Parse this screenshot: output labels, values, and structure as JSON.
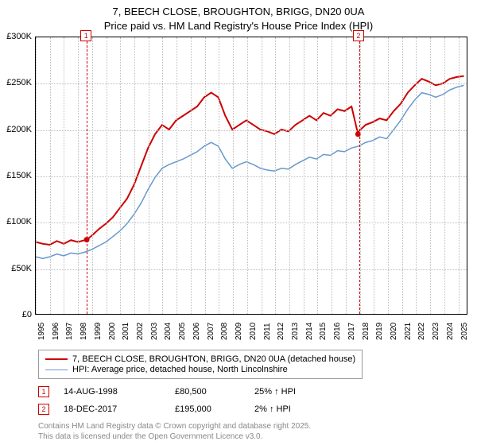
{
  "title_line1": "7, BEECH CLOSE, BROUGHTON, BRIGG, DN20 0UA",
  "title_line2": "Price paid vs. HM Land Registry's House Price Index (HPI)",
  "chart": {
    "type": "line",
    "x_years": [
      1995,
      1996,
      1997,
      1998,
      1999,
      2000,
      2001,
      2002,
      2003,
      2004,
      2005,
      2006,
      2007,
      2008,
      2009,
      2010,
      2011,
      2012,
      2013,
      2014,
      2015,
      2016,
      2017,
      2018,
      2019,
      2020,
      2021,
      2022,
      2023,
      2024,
      2025
    ],
    "xlim": [
      1995,
      2025.7
    ],
    "ylim": [
      0,
      300000
    ],
    "ytick_step": 50000,
    "y_tick_labels": [
      "£0",
      "£50K",
      "£100K",
      "£150K",
      "£200K",
      "£250K",
      "£300K"
    ],
    "grid_color": "#bdbdbd",
    "background_color": "#ffffff",
    "axis_color": "#000000",
    "series": [
      {
        "name": "7, BEECH CLOSE, BROUGHTON, BRIGG, DN20 0UA (detached house)",
        "color": "#cc0000",
        "line_width": 2,
        "data": [
          [
            1995,
            78000
          ],
          [
            1995.5,
            76000
          ],
          [
            1996,
            75000
          ],
          [
            1996.5,
            79000
          ],
          [
            1997,
            76000
          ],
          [
            1997.5,
            80000
          ],
          [
            1998,
            78000
          ],
          [
            1998.63,
            80500
          ],
          [
            1999,
            85000
          ],
          [
            1999.5,
            92000
          ],
          [
            2000,
            98000
          ],
          [
            2000.5,
            105000
          ],
          [
            2001,
            115000
          ],
          [
            2001.5,
            125000
          ],
          [
            2002,
            140000
          ],
          [
            2002.5,
            160000
          ],
          [
            2003,
            180000
          ],
          [
            2003.5,
            195000
          ],
          [
            2004,
            205000
          ],
          [
            2004.5,
            200000
          ],
          [
            2005,
            210000
          ],
          [
            2005.5,
            215000
          ],
          [
            2006,
            220000
          ],
          [
            2006.5,
            225000
          ],
          [
            2007,
            235000
          ],
          [
            2007.5,
            240000
          ],
          [
            2008,
            235000
          ],
          [
            2008.5,
            215000
          ],
          [
            2009,
            200000
          ],
          [
            2009.5,
            205000
          ],
          [
            2010,
            210000
          ],
          [
            2010.5,
            205000
          ],
          [
            2011,
            200000
          ],
          [
            2011.5,
            198000
          ],
          [
            2012,
            195000
          ],
          [
            2012.5,
            200000
          ],
          [
            2013,
            198000
          ],
          [
            2013.5,
            205000
          ],
          [
            2014,
            210000
          ],
          [
            2014.5,
            215000
          ],
          [
            2015,
            210000
          ],
          [
            2015.5,
            218000
          ],
          [
            2016,
            215000
          ],
          [
            2016.5,
            222000
          ],
          [
            2017,
            220000
          ],
          [
            2017.5,
            225000
          ],
          [
            2017.96,
            195000
          ],
          [
            2018,
            198000
          ],
          [
            2018.5,
            205000
          ],
          [
            2019,
            208000
          ],
          [
            2019.5,
            212000
          ],
          [
            2020,
            210000
          ],
          [
            2020.5,
            220000
          ],
          [
            2021,
            228000
          ],
          [
            2021.5,
            240000
          ],
          [
            2022,
            248000
          ],
          [
            2022.5,
            255000
          ],
          [
            2023,
            252000
          ],
          [
            2023.5,
            248000
          ],
          [
            2024,
            250000
          ],
          [
            2024.5,
            255000
          ],
          [
            2025,
            257000
          ],
          [
            2025.5,
            258000
          ]
        ],
        "markers": [
          {
            "label": "1",
            "x": 1998.63,
            "y": 80500
          },
          {
            "label": "2",
            "x": 2017.96,
            "y": 195000
          }
        ]
      },
      {
        "name": "HPI: Average price, detached house, North Lincolnshire",
        "color": "#6699cc",
        "line_width": 1.5,
        "data": [
          [
            1995,
            62000
          ],
          [
            1995.5,
            60000
          ],
          [
            1996,
            62000
          ],
          [
            1996.5,
            65000
          ],
          [
            1997,
            63000
          ],
          [
            1997.5,
            66000
          ],
          [
            1998,
            65000
          ],
          [
            1998.5,
            67000
          ],
          [
            1999,
            70000
          ],
          [
            1999.5,
            74000
          ],
          [
            2000,
            78000
          ],
          [
            2000.5,
            84000
          ],
          [
            2001,
            90000
          ],
          [
            2001.5,
            98000
          ],
          [
            2002,
            108000
          ],
          [
            2002.5,
            120000
          ],
          [
            2003,
            135000
          ],
          [
            2003.5,
            148000
          ],
          [
            2004,
            158000
          ],
          [
            2004.5,
            162000
          ],
          [
            2005,
            165000
          ],
          [
            2005.5,
            168000
          ],
          [
            2006,
            172000
          ],
          [
            2006.5,
            176000
          ],
          [
            2007,
            182000
          ],
          [
            2007.5,
            186000
          ],
          [
            2008,
            182000
          ],
          [
            2008.5,
            168000
          ],
          [
            2009,
            158000
          ],
          [
            2009.5,
            162000
          ],
          [
            2010,
            165000
          ],
          [
            2010.5,
            162000
          ],
          [
            2011,
            158000
          ],
          [
            2011.5,
            156000
          ],
          [
            2012,
            155000
          ],
          [
            2012.5,
            158000
          ],
          [
            2013,
            157000
          ],
          [
            2013.5,
            162000
          ],
          [
            2014,
            166000
          ],
          [
            2014.5,
            170000
          ],
          [
            2015,
            168000
          ],
          [
            2015.5,
            173000
          ],
          [
            2016,
            172000
          ],
          [
            2016.5,
            177000
          ],
          [
            2017,
            176000
          ],
          [
            2017.5,
            180000
          ],
          [
            2018,
            182000
          ],
          [
            2018.5,
            186000
          ],
          [
            2019,
            188000
          ],
          [
            2019.5,
            192000
          ],
          [
            2020,
            190000
          ],
          [
            2020.5,
            200000
          ],
          [
            2021,
            210000
          ],
          [
            2021.5,
            222000
          ],
          [
            2022,
            232000
          ],
          [
            2022.5,
            240000
          ],
          [
            2023,
            238000
          ],
          [
            2023.5,
            235000
          ],
          [
            2024,
            238000
          ],
          [
            2024.5,
            243000
          ],
          [
            2025,
            246000
          ],
          [
            2025.5,
            248000
          ]
        ]
      }
    ]
  },
  "legend": {
    "items": [
      {
        "color": "#cc0000",
        "label": "7, BEECH CLOSE, BROUGHTON, BRIGG, DN20 0UA (detached house)",
        "width": 2
      },
      {
        "color": "#6699cc",
        "label": "HPI: Average price, detached house, North Lincolnshire",
        "width": 1.5
      }
    ]
  },
  "sales": [
    {
      "marker": "1",
      "date": "14-AUG-1998",
      "price": "£80,500",
      "pct": "25% ↑ HPI"
    },
    {
      "marker": "2",
      "date": "18-DEC-2017",
      "price": "£195,000",
      "pct": "2% ↑ HPI"
    }
  ],
  "footer_line1": "Contains HM Land Registry data © Crown copyright and database right 2025.",
  "footer_line2": "This data is licensed under the Open Government Licence v3.0."
}
